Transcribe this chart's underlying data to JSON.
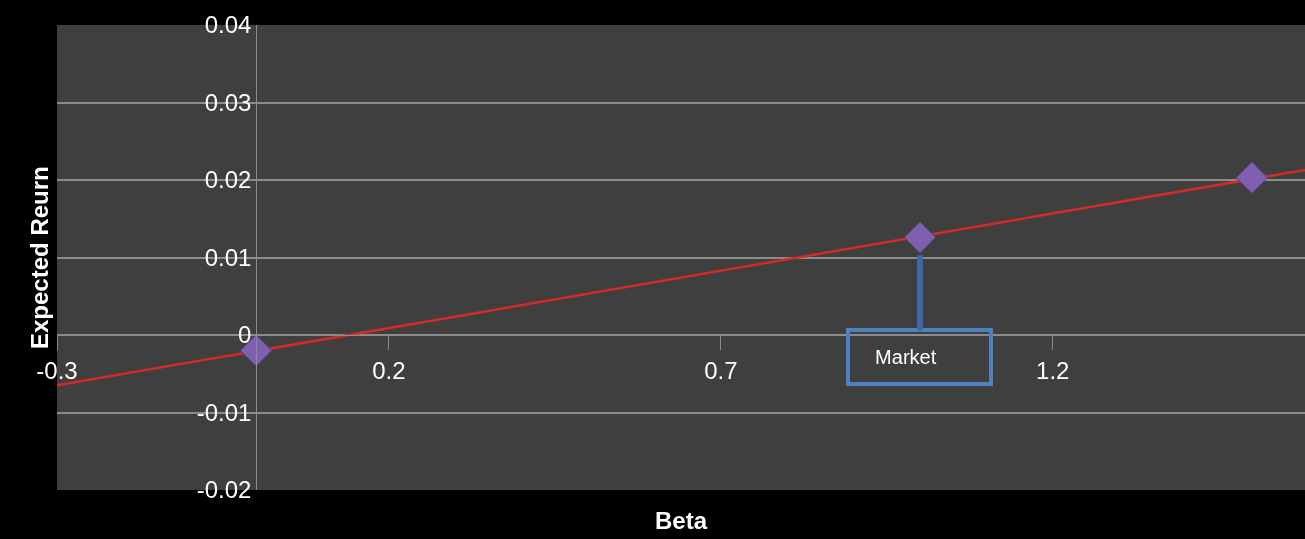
{
  "chart_data": {
    "type": "scatter",
    "xlabel": "Beta",
    "ylabel": "Expected Reurn",
    "series": [
      {
        "color": "#7f5fb0",
        "marker": "diamond",
        "x": [
          0,
          1.0,
          1.5
        ],
        "values": [
          -0.002,
          0.0126,
          0.0203
        ]
      },
      {
        "type": "line",
        "color": "#d42a2a",
        "marker": "none",
        "x": [
          -0.3,
          1.58
        ],
        "values": [
          -0.0065,
          0.0213
        ]
      }
    ],
    "annotations": [
      {
        "text": "Market",
        "x": 1.0,
        "y": 0.0126
      }
    ],
    "xlim": [
      -0.3,
      1.58
    ],
    "xticks": [
      -0.3,
      0.2,
      0.7,
      1.2
    ],
    "ylim": [
      -0.02,
      0.04
    ],
    "yticks": [
      -0.02,
      -0.01,
      0,
      0.01,
      0.02,
      0.03,
      0.04
    ],
    "grid": "y"
  }
}
